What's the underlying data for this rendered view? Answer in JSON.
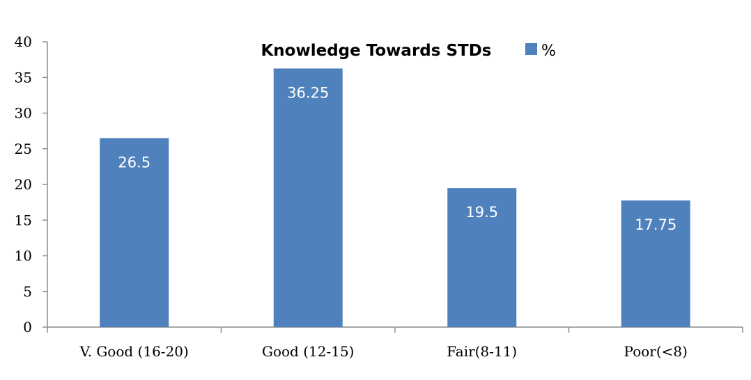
{
  "chart_data": {
    "type": "bar",
    "title": "Knowledge Towards STDs",
    "categories": [
      "V. Good (16-20)",
      "Good (12-15)",
      "Fair(8-11)",
      "Poor(<8)"
    ],
    "series": [
      {
        "name": "%",
        "values": [
          26.5,
          36.25,
          19.5,
          17.75
        ],
        "data_labels": [
          "26.5",
          "36.25",
          "19.5",
          "17.75"
        ]
      }
    ],
    "y_ticks": [
      "0",
      "5",
      "10",
      "15",
      "20",
      "25",
      "30",
      "35",
      "40"
    ],
    "ylim": [
      0,
      40
    ],
    "xlabel": "",
    "ylabel": "",
    "grid": false,
    "legend_position": "top-right",
    "bar_color": "#4f81bd"
  }
}
